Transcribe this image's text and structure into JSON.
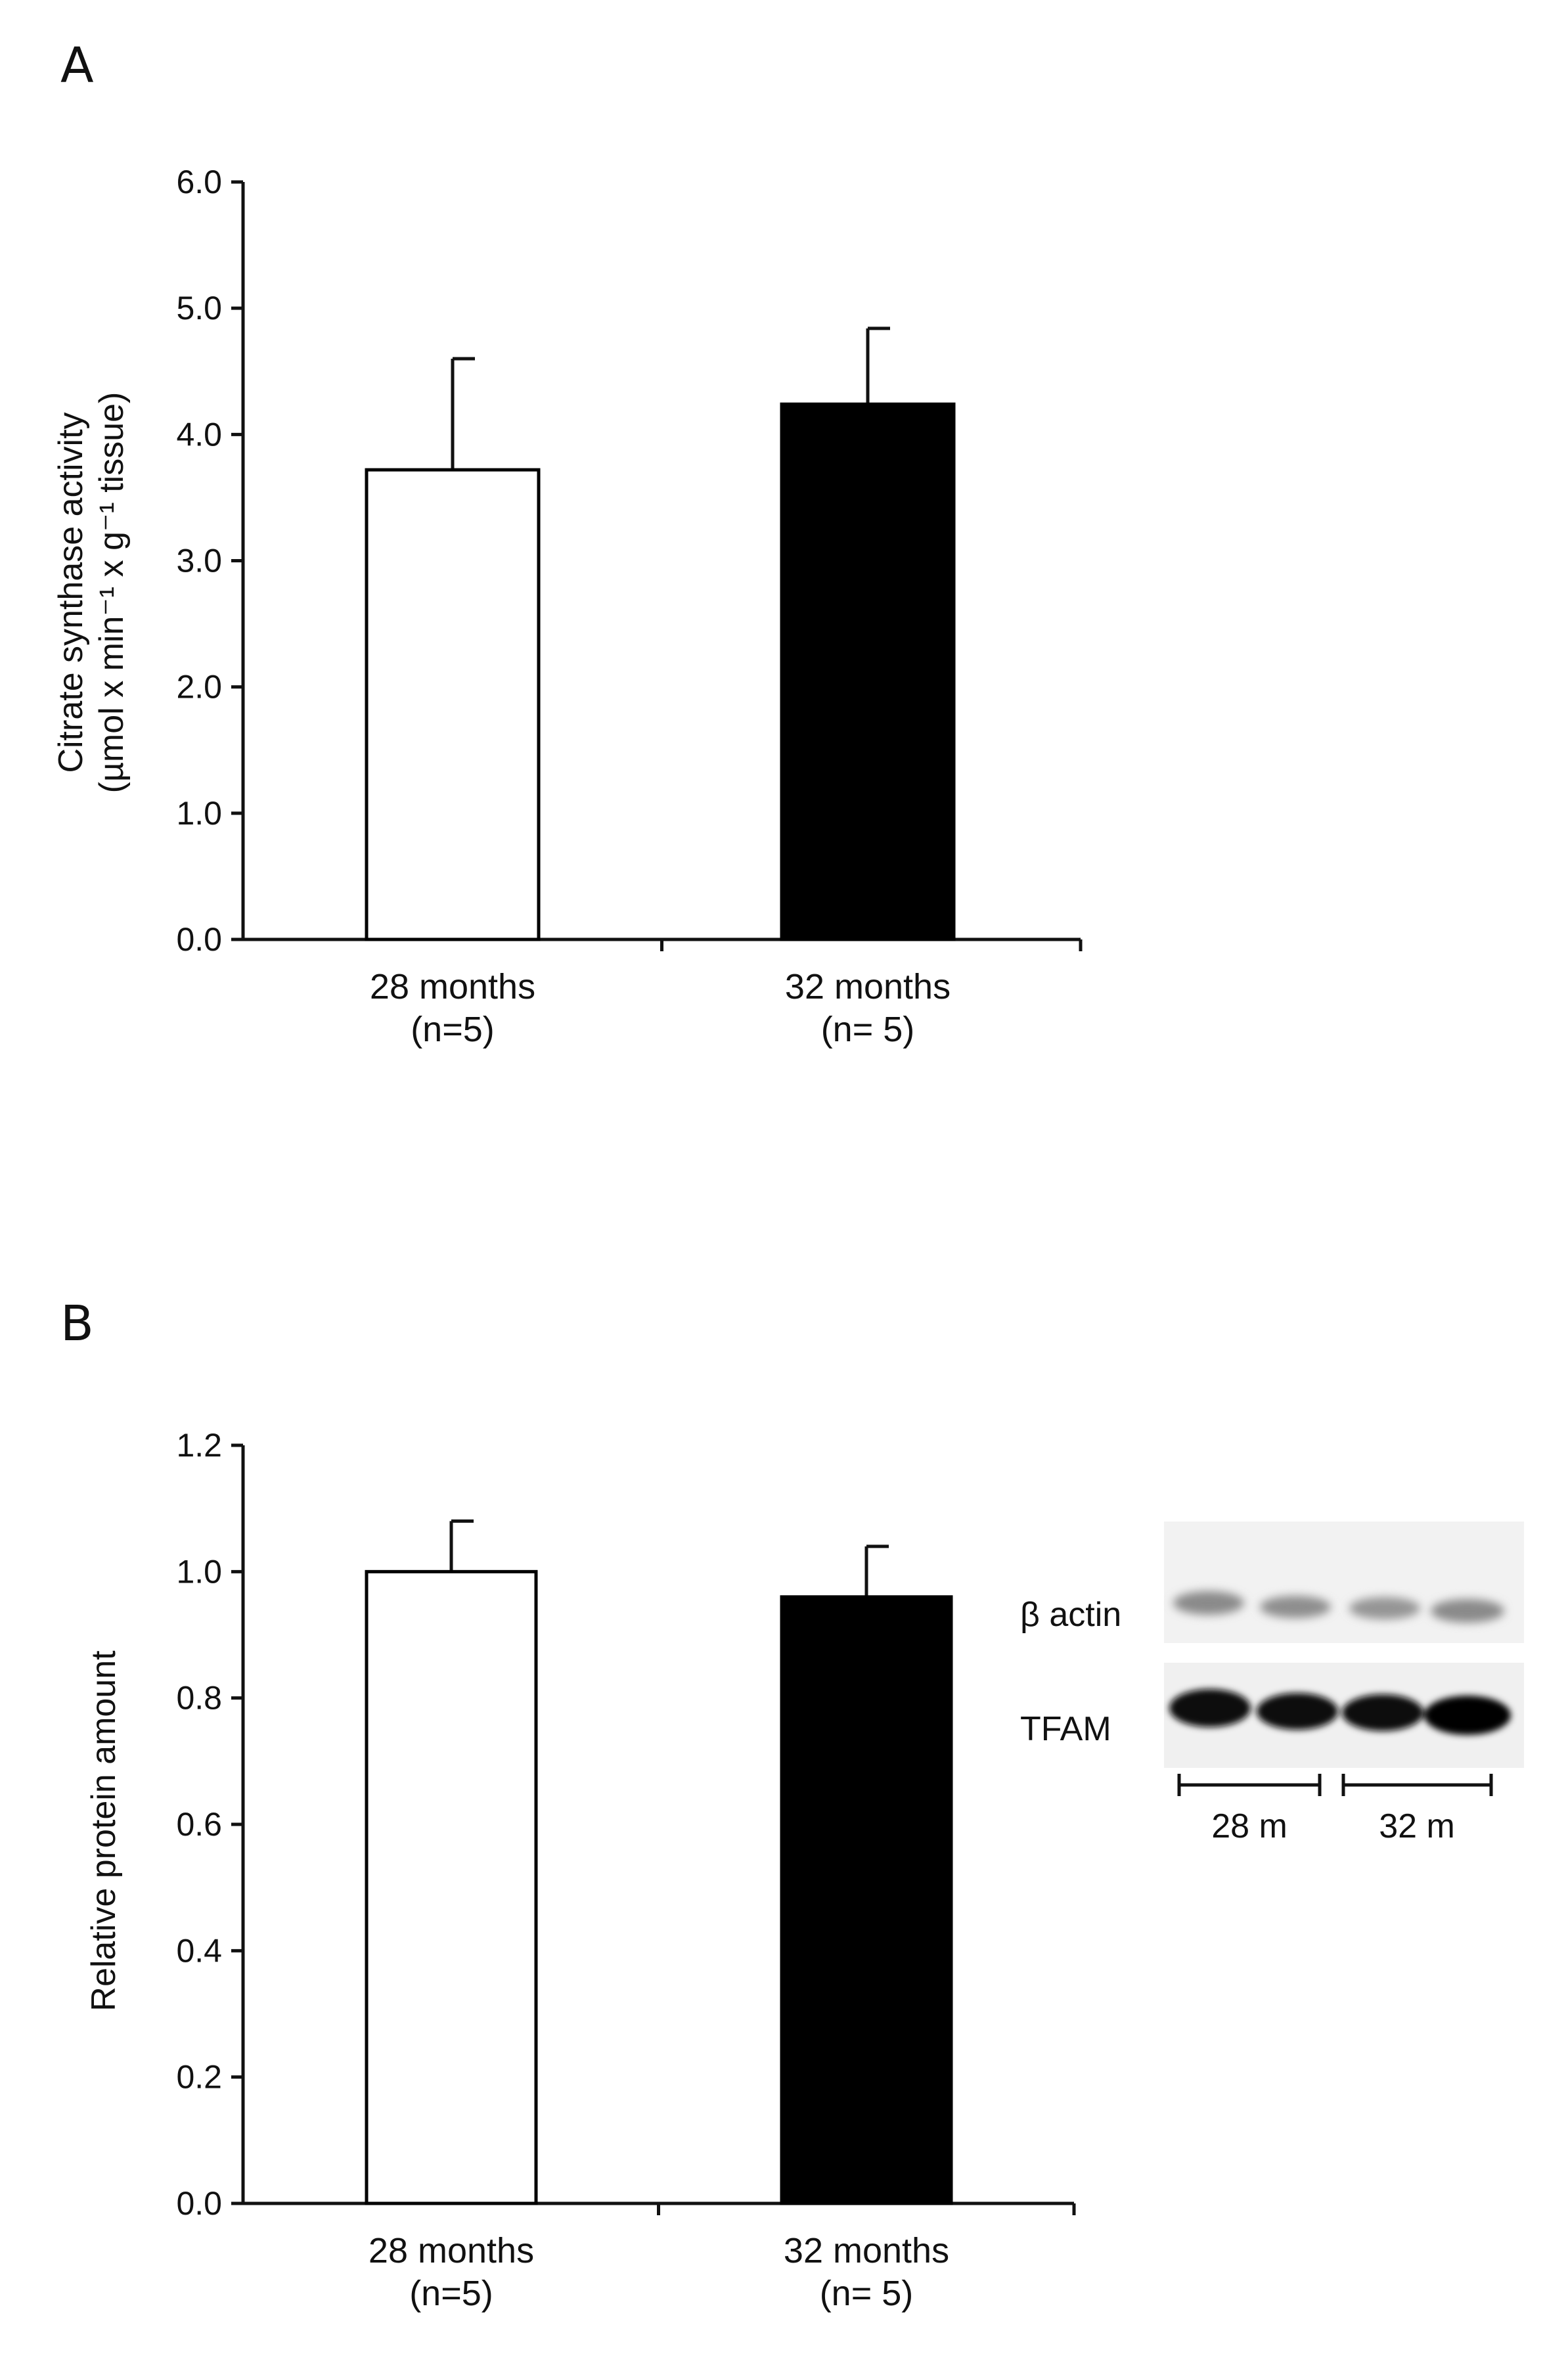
{
  "chart_data": [
    {
      "panel": "A",
      "type": "bar",
      "categories": [
        "28 months",
        "32 months"
      ],
      "category_notes": [
        "(n=5)",
        "(n= 5)"
      ],
      "values": [
        3.72,
        4.24
      ],
      "errors": [
        0.88,
        0.6
      ],
      "colors": [
        "#ffffff",
        "#000000"
      ],
      "ylabel_lines": [
        "Citrate synthase activity",
        "(µmol x min⁻¹ x g⁻¹ tissue)"
      ],
      "ylim": [
        0,
        6
      ],
      "yticks": [
        "0.0",
        "1.0",
        "2.0",
        "3.0",
        "4.0",
        "5.0",
        "6.0"
      ]
    },
    {
      "panel": "B",
      "type": "bar",
      "categories": [
        "28 months",
        "32 months"
      ],
      "category_notes": [
        "(n=5)",
        "(n= 5)"
      ],
      "values": [
        1.0,
        0.96
      ],
      "errors": [
        0.08,
        0.08
      ],
      "colors": [
        "#ffffff",
        "#000000"
      ],
      "ylabel_lines": [
        "Relative protein amount"
      ],
      "ylim": [
        0,
        1.2
      ],
      "yticks": [
        "0.0",
        "0.2",
        "0.4",
        "0.6",
        "0.8",
        "1.0",
        "1.2"
      ]
    }
  ],
  "blot": {
    "rows": [
      "β actin",
      "TFAM"
    ],
    "groups": [
      "28 m",
      "32 m"
    ]
  }
}
